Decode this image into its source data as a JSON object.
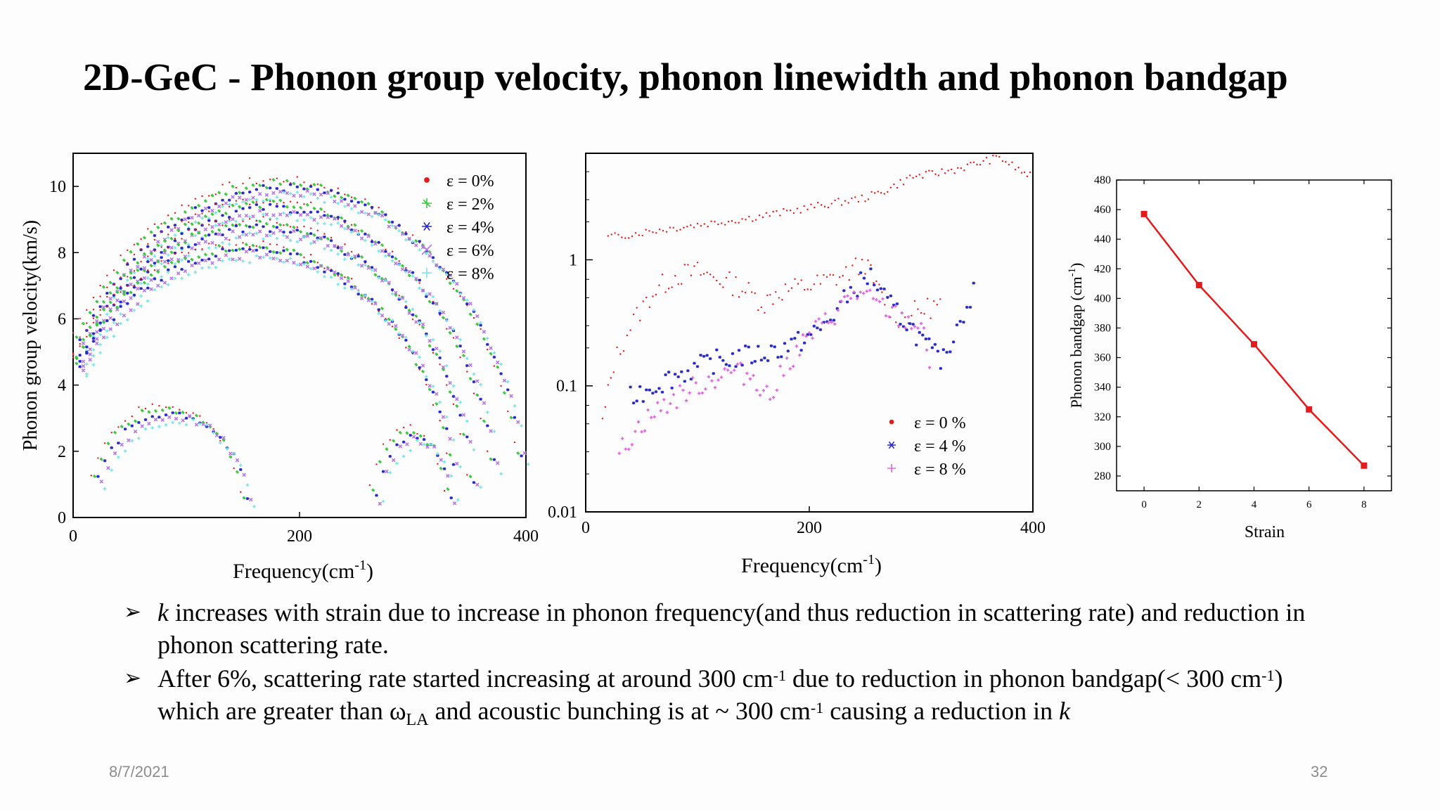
{
  "slide": {
    "title": "2D-GeC - Phonon group velocity, phonon linewidth and phonon bandgap",
    "date": "8/7/2021",
    "page": "32"
  },
  "bullets": {
    "b1_k": "k",
    "b1_text": " increases with strain due to increase in phonon frequency(and thus reduction in scattering rate) and reduction in phonon scattering rate.",
    "b2_a": "After 6%, scattering rate started increasing at around 300 cm",
    "b2_sup1": "-1",
    "b2_b": " due to reduction in phonon bandgap(< 300 cm",
    "b2_sup2": "-1",
    "b2_c": ") which are greater than ω",
    "b2_sub": "LA",
    "b2_d": "  and acoustic bunching is at ~ 300 cm",
    "b2_sup3": "-1",
    "b2_e": " causing a reduction in ",
    "b2_k": "k"
  },
  "chart_data": [
    {
      "type": "scatter",
      "ylabel": "Phonon group velocity(km/s)",
      "xlabel": "Frequency(cm",
      "xlabel_sup": "-1",
      "xlabel_end": ")",
      "xlim": [
        0,
        400
      ],
      "ylim": [
        0,
        11
      ],
      "xticks": [
        0,
        200,
        400
      ],
      "yticks": [
        0,
        2,
        4,
        6,
        8,
        10
      ],
      "series": [
        {
          "name": "ε = 0%",
          "color": "#e41a1c",
          "marker": "dot"
        },
        {
          "name": "ε = 2%",
          "color": "#3cc83c",
          "marker": "star"
        },
        {
          "name": "ε = 4%",
          "color": "#2828c8",
          "marker": "asterisk"
        },
        {
          "name": "ε = 6%",
          "color": "#b478e6",
          "marker": "cross"
        },
        {
          "name": "ε = 8%",
          "color": "#78e6e6",
          "marker": "plus"
        }
      ],
      "branches": [
        {
          "kind": "arc",
          "cx": 180,
          "cy": 0,
          "rx": 215,
          "ry": 10.2,
          "from": 0,
          "to": 395
        },
        {
          "kind": "arc",
          "cx": 170,
          "cy": 0,
          "rx": 200,
          "ry": 9.6,
          "from": 0,
          "to": 370
        },
        {
          "kind": "arc",
          "cx": 160,
          "cy": 0,
          "rx": 190,
          "ry": 9.0,
          "from": 0,
          "to": 350
        },
        {
          "kind": "arc",
          "cx": 150,
          "cy": 0,
          "rx": 185,
          "ry": 8.3,
          "from": 0,
          "to": 335
        },
        {
          "kind": "arc",
          "cx": 80,
          "cy": 0,
          "rx": 70,
          "ry": 3.4,
          "from": 10,
          "to": 150
        },
        {
          "kind": "arc",
          "cx": 295,
          "cy": 0,
          "rx": 35,
          "ry": 2.7,
          "from": 262,
          "to": 330
        }
      ]
    },
    {
      "type": "scatter",
      "scale": "log",
      "xlabel": "Frequency(cm",
      "xlabel_sup": "-1",
      "xlabel_end": ")",
      "xlim": [
        0,
        400
      ],
      "ylim": [
        0.01,
        7
      ],
      "xticks": [
        0,
        200,
        400
      ],
      "yticks": [
        0.01,
        0.1,
        1
      ],
      "ytick_labels": [
        "0.01",
        "0.1",
        "1"
      ],
      "series": [
        {
          "name": "ε = 0 %",
          "color": "#e41a1c",
          "marker": "dot",
          "points": [
            [
              15,
              0.05
            ],
            [
              25,
              0.15
            ],
            [
              40,
              0.3
            ],
            [
              60,
              0.55
            ],
            [
              80,
              0.75
            ],
            [
              100,
              0.8
            ],
            [
              120,
              0.7
            ],
            [
              140,
              0.6
            ],
            [
              160,
              0.45
            ],
            [
              170,
              0.55
            ],
            [
              190,
              0.6
            ],
            [
              210,
              0.65
            ],
            [
              230,
              0.75
            ],
            [
              250,
              0.95
            ],
            [
              260,
              0.6
            ],
            [
              270,
              0.45
            ],
            [
              280,
              0.35
            ],
            [
              300,
              0.4
            ],
            [
              320,
              0.45
            ]
          ],
          "points_upper": [
            [
              20,
              1.5
            ],
            [
              60,
              1.7
            ],
            [
              100,
              1.9
            ],
            [
              140,
              2.1
            ],
            [
              180,
              2.4
            ],
            [
              220,
              2.8
            ],
            [
              250,
              3.1
            ],
            [
              270,
              3.6
            ],
            [
              290,
              4.5
            ],
            [
              310,
              4.8
            ],
            [
              330,
              5.2
            ],
            [
              350,
              5.8
            ],
            [
              370,
              6.5
            ],
            [
              390,
              5.0
            ],
            [
              400,
              4.5
            ]
          ]
        },
        {
          "name": "ε = 4 %",
          "color": "#2828c8",
          "marker": "asterisk",
          "points": [
            [
              40,
              0.08
            ],
            [
              60,
              0.1
            ],
            [
              80,
              0.12
            ],
            [
              100,
              0.14
            ],
            [
              120,
              0.16
            ],
            [
              140,
              0.17
            ],
            [
              160,
              0.18
            ],
            [
              175,
              0.2
            ],
            [
              190,
              0.22
            ],
            [
              210,
              0.28
            ],
            [
              225,
              0.4
            ],
            [
              240,
              0.6
            ],
            [
              255,
              0.75
            ],
            [
              270,
              0.45
            ],
            [
              290,
              0.3
            ],
            [
              310,
              0.18
            ],
            [
              320,
              0.16
            ],
            [
              335,
              0.35
            ],
            [
              350,
              0.62
            ]
          ]
        },
        {
          "name": "ε = 8 %",
          "color": "#e066e0",
          "marker": "plus",
          "points": [
            [
              30,
              0.03
            ],
            [
              50,
              0.05
            ],
            [
              70,
              0.07
            ],
            [
              90,
              0.09
            ],
            [
              110,
              0.11
            ],
            [
              130,
              0.13
            ],
            [
              150,
              0.12
            ],
            [
              165,
              0.08
            ],
            [
              180,
              0.15
            ],
            [
              200,
              0.25
            ],
            [
              220,
              0.35
            ],
            [
              240,
              0.55
            ],
            [
              260,
              0.45
            ],
            [
              280,
              0.35
            ],
            [
              300,
              0.3
            ],
            [
              310,
              0.12
            ]
          ]
        }
      ]
    },
    {
      "type": "line",
      "ylabel": "Phonon bandgap (cm",
      "ylabel_sup": "-1",
      "ylabel_end": ")",
      "xlabel": "Strain",
      "x": [
        0,
        2,
        4,
        6,
        8
      ],
      "y": [
        457,
        409,
        369,
        325,
        287
      ],
      "xlim": [
        -1,
        9
      ],
      "ylim": [
        270,
        480
      ],
      "xticks": [
        0,
        2,
        4,
        6,
        8
      ],
      "yticks": [
        280,
        300,
        320,
        340,
        360,
        380,
        400,
        420,
        440,
        460,
        480
      ],
      "color": "#e41a1c"
    }
  ]
}
